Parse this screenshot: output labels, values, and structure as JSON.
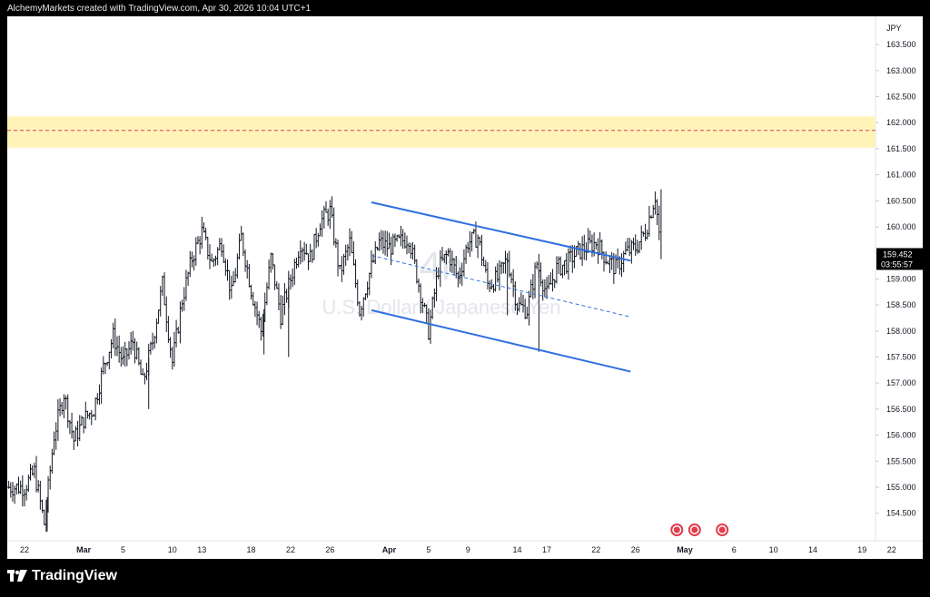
{
  "header": {
    "text": "AlchemyMarkets created with TradingView.com, Apr 30, 2026 10:04 UTC+1"
  },
  "footer": {
    "brand": "TradingView"
  },
  "colors": {
    "zone_fill": "#fff3b8",
    "zone_line": "#d0455d",
    "channel": "#2f6fe0",
    "bars": "#131722",
    "price_label_bg": "#000000",
    "price_label_text": "#ffffff",
    "watermark": "#dcdfe6",
    "flag_icon": "#e23c4d"
  },
  "chart_data": {
    "type": "ohlc-bar",
    "symbol_watermark": {
      "interval": "4h",
      "name": "U.S. Dollar / Japanese Yen"
    },
    "currency": "JPY",
    "y_ticks": [
      "163.500",
      "163.000",
      "162.500",
      "162.000",
      "161.500",
      "161.000",
      "160.500",
      "160.000",
      "159.500",
      "159.000",
      "158.500",
      "158.000",
      "157.500",
      "157.000",
      "156.500",
      "156.000",
      "155.500",
      "155.000",
      "154.500"
    ],
    "ylim": [
      154.1,
      164.0
    ],
    "x_ticks": [
      {
        "label": "22",
        "day": 0,
        "bold": false
      },
      {
        "label": "Mar",
        "day": 6,
        "bold": true
      },
      {
        "label": "5",
        "day": 10,
        "bold": false
      },
      {
        "label": "10",
        "day": 15,
        "bold": false
      },
      {
        "label": "13",
        "day": 18,
        "bold": false
      },
      {
        "label": "18",
        "day": 23,
        "bold": false
      },
      {
        "label": "22",
        "day": 27,
        "bold": false
      },
      {
        "label": "26",
        "day": 31,
        "bold": false
      },
      {
        "label": "Apr",
        "day": 37,
        "bold": true
      },
      {
        "label": "5",
        "day": 41,
        "bold": false
      },
      {
        "label": "9",
        "day": 45,
        "bold": false
      },
      {
        "label": "14",
        "day": 50,
        "bold": false
      },
      {
        "label": "17",
        "day": 53,
        "bold": false
      },
      {
        "label": "22",
        "day": 58,
        "bold": false
      },
      {
        "label": "26",
        "day": 62,
        "bold": false
      },
      {
        "label": "May",
        "day": 67,
        "bold": true
      },
      {
        "label": "6",
        "day": 72,
        "bold": false
      },
      {
        "label": "10",
        "day": 76,
        "bold": false
      },
      {
        "label": "14",
        "day": 80,
        "bold": false
      },
      {
        "label": "19",
        "day": 85,
        "bold": false
      },
      {
        "label": "22",
        "day": 88,
        "bold": false
      }
    ],
    "xlim": [
      -2,
      90
    ],
    "zone": {
      "low": 161.52,
      "high": 162.12,
      "mid": 161.85
    },
    "channel": {
      "upper": [
        [
          35.2,
          160.47
        ],
        [
          61.5,
          159.35
        ]
      ],
      "lower": [
        [
          35.2,
          158.4
        ],
        [
          61.5,
          157.22
        ]
      ],
      "mid": [
        [
          35.2,
          159.45
        ],
        [
          61.5,
          158.27
        ]
      ]
    },
    "last_price": {
      "price": "159.452",
      "countdown": "03:55:57",
      "value": 159.452
    },
    "event_flags": [
      {
        "day": 66.2
      },
      {
        "day": 68.0
      },
      {
        "day": 70.8
      }
    ],
    "price_path": [
      [
        0,
        155.0
      ],
      [
        1,
        155.3
      ],
      [
        2,
        154.3
      ],
      [
        3,
        156.0
      ],
      [
        4,
        156.8
      ],
      [
        5,
        155.9
      ],
      [
        6,
        156.3
      ],
      [
        7,
        156.5
      ],
      [
        8,
        157.3
      ],
      [
        9,
        157.9
      ],
      [
        10,
        157.4
      ],
      [
        11,
        157.8
      ],
      [
        12,
        157.0
      ],
      [
        13,
        157.8
      ],
      [
        14,
        158.9
      ],
      [
        15,
        157.4
      ],
      [
        16,
        158.6
      ],
      [
        17,
        159.4
      ],
      [
        18,
        159.9
      ],
      [
        19,
        159.3
      ],
      [
        20,
        159.7
      ],
      [
        21,
        158.7
      ],
      [
        22,
        159.8
      ],
      [
        23,
        158.8
      ],
      [
        24,
        158.0
      ],
      [
        25,
        159.4
      ],
      [
        26,
        158.3
      ],
      [
        27,
        159.0
      ],
      [
        28,
        159.7
      ],
      [
        29,
        159.4
      ],
      [
        30,
        160.1
      ],
      [
        31,
        160.3
      ],
      [
        32,
        159.1
      ],
      [
        33,
        159.7
      ],
      [
        34,
        158.4
      ],
      [
        35,
        159.1
      ],
      [
        36,
        159.7
      ],
      [
        37,
        159.6
      ],
      [
        38,
        159.7
      ],
      [
        39,
        159.8
      ],
      [
        40,
        158.9
      ],
      [
        41,
        158.0
      ],
      [
        42,
        159.2
      ],
      [
        43,
        159.5
      ],
      [
        44,
        159.0
      ],
      [
        45,
        159.7
      ],
      [
        46,
        159.8
      ],
      [
        47,
        158.9
      ],
      [
        48,
        159.0
      ],
      [
        49,
        159.4
      ],
      [
        50,
        158.5
      ],
      [
        51,
        158.4
      ],
      [
        52,
        159.3
      ],
      [
        53,
        158.7
      ],
      [
        54,
        159.2
      ],
      [
        55,
        159.3
      ],
      [
        56,
        159.5
      ],
      [
        57,
        159.6
      ],
      [
        58,
        159.7
      ],
      [
        59,
        159.4
      ],
      [
        60,
        159.2
      ],
      [
        61,
        159.5
      ],
      [
        62,
        159.6
      ],
      [
        63,
        159.9
      ],
      [
        64,
        160.6
      ],
      [
        64.6,
        159.5
      ]
    ],
    "spikes": [
      {
        "day": 2.3,
        "value": 154.15
      },
      {
        "day": 24.3,
        "value": 157.55
      },
      {
        "day": 41.2,
        "value": 157.9
      },
      {
        "day": 52.2,
        "value": 157.6
      },
      {
        "day": 49.0,
        "value": 158.3
      },
      {
        "day": 12.6,
        "value": 156.5
      },
      {
        "day": 26.8,
        "value": 157.5
      }
    ]
  }
}
